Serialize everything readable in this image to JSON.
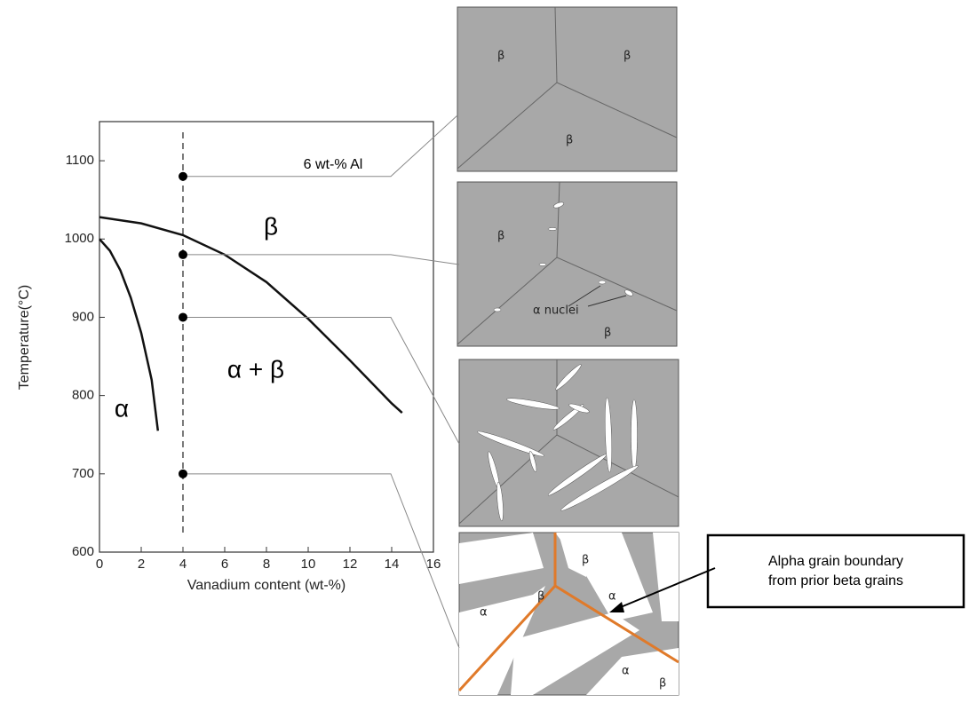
{
  "chart_data": {
    "type": "line",
    "xlabel": "Vanadium content (wt-%)",
    "ylabel": "Temperature(°C)",
    "xlim": [
      0,
      16
    ],
    "ylim": [
      600,
      1150
    ],
    "xticks": [
      0,
      2,
      4,
      6,
      8,
      10,
      12,
      14,
      16
    ],
    "yticks": [
      600,
      700,
      800,
      900,
      1000,
      1100
    ],
    "series": [
      {
        "color": "#111111",
        "x": [
          0,
          2,
          4,
          6,
          8,
          10,
          12,
          14,
          14.5
        ],
        "values": [
          1028,
          1020,
          1005,
          980,
          945,
          898,
          845,
          790,
          778
        ]
      },
      {
        "color": "#111111",
        "x": [
          0,
          0.5,
          1,
          1.5,
          2,
          2.5,
          2.8
        ],
        "values": [
          1000,
          985,
          960,
          925,
          880,
          820,
          755
        ]
      }
    ],
    "composition": {
      "x": 4,
      "label": "6 wt-% Al"
    },
    "points": {
      "color": "#000000",
      "x": [
        4,
        4,
        4,
        4
      ],
      "values": [
        1080,
        980,
        900,
        700
      ]
    },
    "regions": [
      "β",
      "α + β",
      "α"
    ]
  },
  "panel1": [
    "β",
    "β",
    "β"
  ],
  "panel2": [
    "β",
    "α nuclei",
    "β"
  ],
  "panel4": [
    "β",
    "α",
    "β",
    "α",
    "α",
    "β"
  ],
  "callout": [
    "Alpha grain boundary",
    "from prior beta grains"
  ]
}
